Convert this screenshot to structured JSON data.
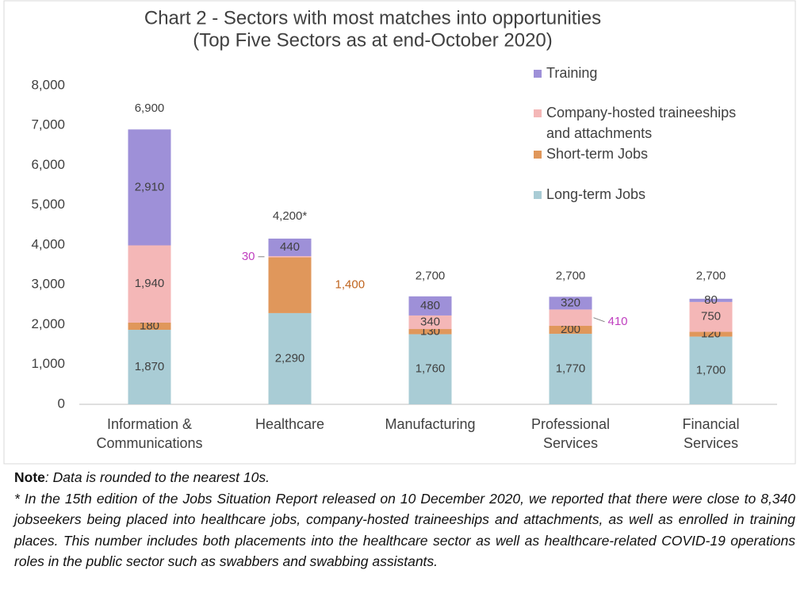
{
  "chart_data": {
    "type": "stacked_bar",
    "title": "Chart 2 - Sectors with most matches into opportunities",
    "subtitle": "(Top Five Sectors as at end-October 2020)",
    "categories": [
      "Information & Communications",
      "Healthcare",
      "Manufacturing",
      "Professional Services",
      "Financial Services"
    ],
    "series": [
      {
        "name": "Long-term Jobs",
        "color": "#a9ccd5",
        "values": [
          1870,
          2290,
          1760,
          1770,
          1700
        ],
        "value_labels": [
          "1,870",
          "2,290",
          "1,760",
          "1,770",
          "1,700"
        ]
      },
      {
        "name": "Short-term Jobs",
        "color": "#e0975b",
        "values": [
          180,
          1400,
          130,
          200,
          120
        ],
        "value_labels": [
          "180",
          "1,400",
          "130",
          "200",
          "120"
        ]
      },
      {
        "name": "Company-hosted traineeships and attachments",
        "color": "#f4b7b7",
        "values": [
          1940,
          30,
          340,
          410,
          750
        ],
        "value_labels": [
          "1,940",
          "30",
          "340",
          "410",
          "750"
        ]
      },
      {
        "name": "Training",
        "color": "#9e90d8",
        "values": [
          2910,
          440,
          480,
          320,
          80
        ],
        "value_labels": [
          "2,910",
          "440",
          "480",
          "320",
          "80"
        ]
      }
    ],
    "totals": {
      "values": [
        6900,
        4200,
        2700,
        2700,
        2700
      ],
      "value_labels": [
        "6,900",
        "4,200*",
        "2,700",
        "2,700",
        "2,700"
      ]
    },
    "ylim": [
      0,
      8000
    ],
    "yticks": [
      0,
      {
        "value": 1000,
        "label": "1,000"
      },
      {
        "value": 2000,
        "label": "2,000"
      },
      {
        "value": 3000,
        "label": "3,000"
      },
      {
        "value": 4000,
        "label": "4,000"
      },
      {
        "value": 5000,
        "label": "5,000"
      },
      {
        "value": 6000,
        "label": "6,000"
      },
      {
        "value": 7000,
        "label": "7,000"
      },
      {
        "value": 8000,
        "label": "8,000"
      }
    ],
    "grid": false,
    "legend": "top-right"
  },
  "notes": {
    "label": "Note",
    "text": ": Data is rounded to the nearest 10s.",
    "footnote": "* In the 15th edition of the Jobs Situation Report released on 10 December 2020, we reported that there were close to 8,340 jobseekers being placed into healthcare jobs, company-hosted traineeships and attachments, as well as enrolled in training places. This number includes both placements into the healthcare sector as well as healthcare-related COVID-19 operations roles in the public sector such as swabbers and swabbing assistants."
  }
}
